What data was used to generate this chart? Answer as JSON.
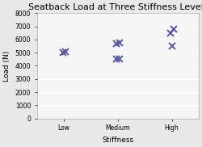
{
  "title": "Seatback Load at Three Stiffness Levels",
  "xlabel": "Stiffness",
  "ylabel": "Load (N)",
  "categories": [
    "Low",
    "Medium",
    "High"
  ],
  "x_positions": [
    1,
    2,
    3
  ],
  "data_points": {
    "Low": [
      5000,
      5050
    ],
    "Medium": [
      4500,
      4550,
      5700,
      5750
    ],
    "High": [
      5500,
      6500,
      6800
    ]
  },
  "marker_color": "#5555aa",
  "marker_style": "x",
  "marker_size": 6,
  "marker_lw": 1.4,
  "ylim": [
    0,
    8000
  ],
  "yticks": [
    0,
    1000,
    2000,
    3000,
    4000,
    5000,
    6000,
    7000,
    8000
  ],
  "xlim": [
    0.5,
    3.5
  ],
  "title_fontsize": 8,
  "axis_label_fontsize": 6.5,
  "tick_fontsize": 5.5,
  "background_color": "#e8e8e8",
  "plot_bg_color": "#f5f5f5",
  "grid_color": "#ffffff",
  "spine_color": "#aaaaaa"
}
